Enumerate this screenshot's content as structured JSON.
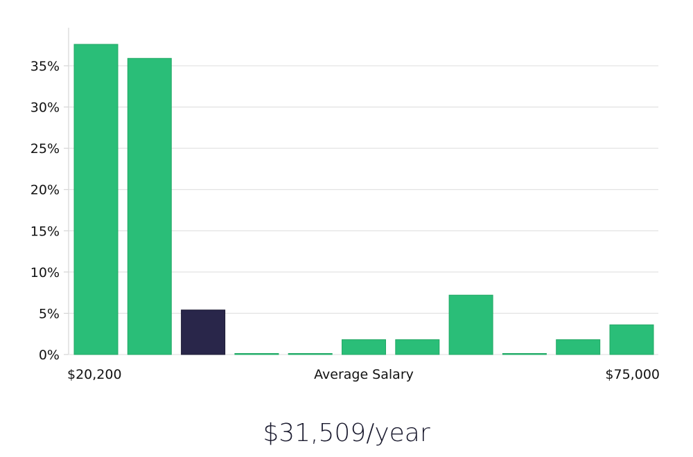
{
  "chart_data": {
    "type": "bar",
    "xlabel": "Average Salary",
    "x_min_label": "$20,200",
    "x_max_label": "$75,000",
    "ylim": [
      0,
      0.39
    ],
    "y_ticks": [
      0,
      0.05,
      0.1,
      0.15,
      0.2,
      0.25,
      0.3,
      0.35
    ],
    "y_tick_labels": [
      "0%",
      "5%",
      "10%",
      "15%",
      "20%",
      "25%",
      "30%",
      "35%"
    ],
    "grid": true,
    "values": [
      0.376,
      0.359,
      0.054,
      0.0,
      0.0,
      0.018,
      0.018,
      0.072,
      0.0,
      0.018,
      0.036
    ],
    "highlight_index": 2,
    "colors": {
      "bar": "#2abe78",
      "bar_edge": "#22a865",
      "highlight": "#29264a",
      "grid": "#dcdcdc",
      "axis": "#cccccc",
      "text": "#111111"
    }
  },
  "summary": {
    "average_salary": "$31,509/year"
  }
}
